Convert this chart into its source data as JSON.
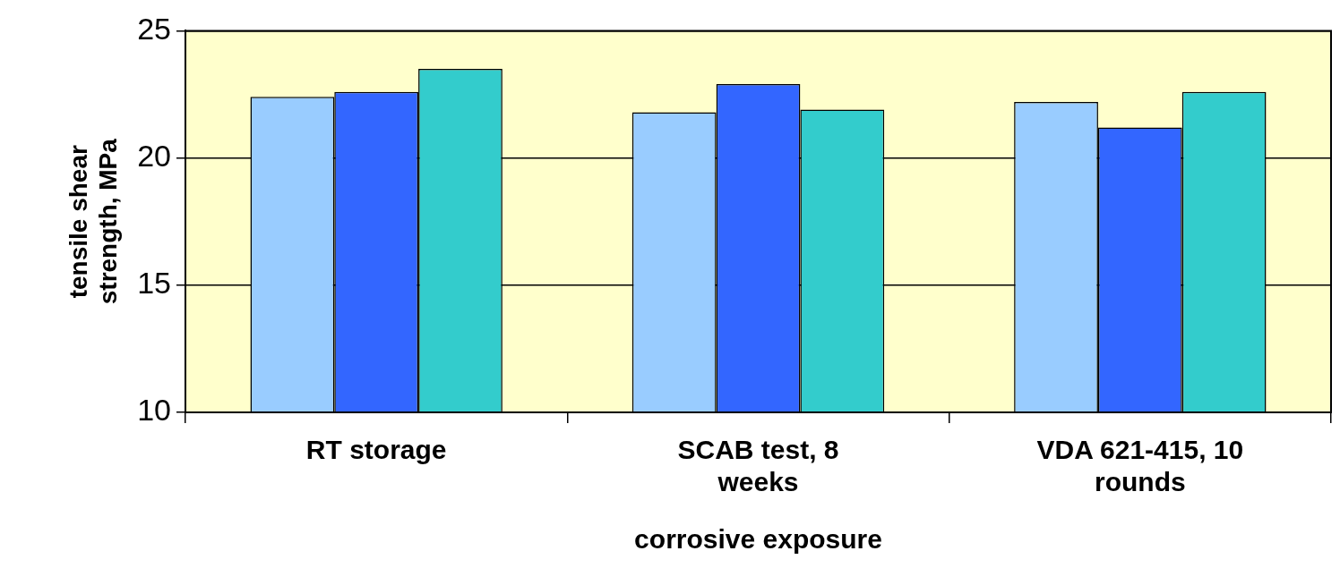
{
  "chart_data": {
    "type": "bar",
    "xlabel": "corrosive exposure",
    "ylabel": "tensile shear strength, MPa",
    "categories": [
      "RT storage",
      "SCAB test, 8 weeks",
      "VDA 621-415, 10 rounds"
    ],
    "series": [
      {
        "color": "#99ccff",
        "values": [
          22.4,
          21.8,
          22.2
        ]
      },
      {
        "color": "#3366ff",
        "values": [
          22.6,
          22.9,
          21.2
        ]
      },
      {
        "color": "#33cccc",
        "values": [
          23.5,
          21.9,
          22.6
        ]
      }
    ],
    "ylim": [
      10,
      25
    ],
    "yticks": [
      10,
      15,
      20,
      25
    ],
    "grid": "y",
    "legend": false
  }
}
